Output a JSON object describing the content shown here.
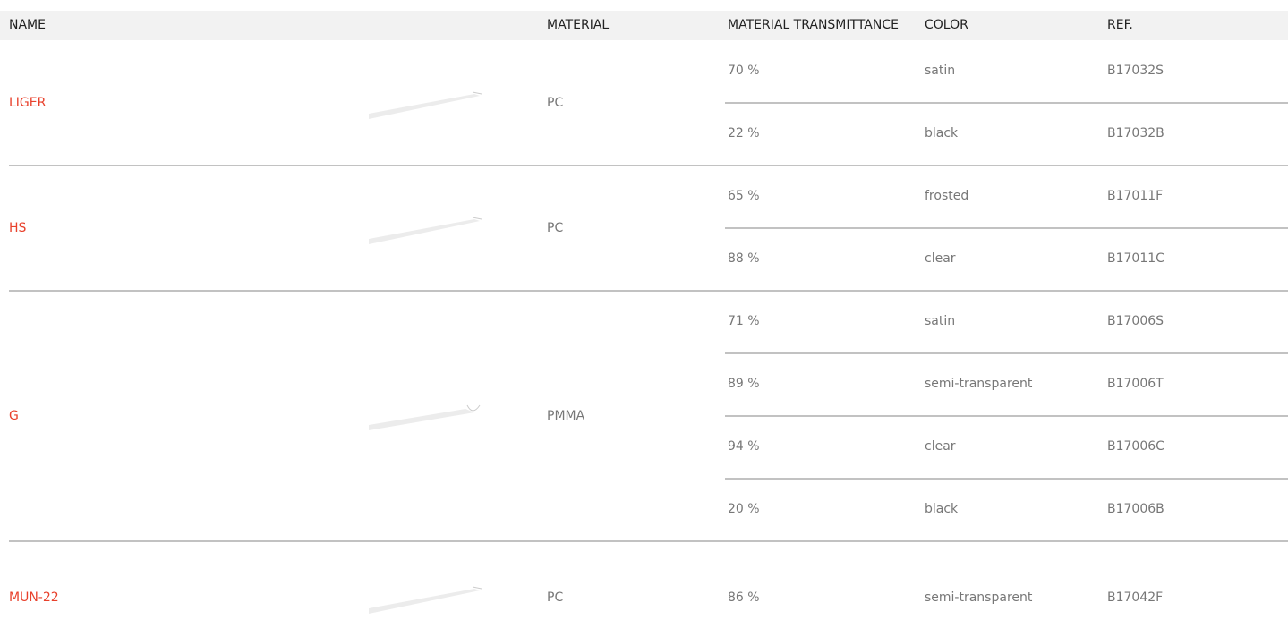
{
  "header": {
    "columns": [
      "NAME",
      "MATERIAL",
      "MATERIAL TRANSMITTANCE",
      "COLOR",
      "REF."
    ]
  },
  "table": {
    "rows": [
      {
        "name": "LIGER",
        "material": "PC",
        "variants": [
          {
            "transmittance": "70 %",
            "color": "satin",
            "ref": "B17032S"
          },
          {
            "transmittance": "22 %",
            "color": "black",
            "ref": "B17032B"
          }
        ]
      },
      {
        "name": "HS",
        "material": "PC",
        "variants": [
          {
            "transmittance": "65 %",
            "color": "frosted",
            "ref": "B17011F"
          },
          {
            "transmittance": "88 %",
            "color": "clear",
            "ref": "B17011C"
          }
        ]
      },
      {
        "name": "G",
        "material": "PMMA",
        "variants": [
          {
            "transmittance": "71 %",
            "color": "satin",
            "ref": "B17006S"
          },
          {
            "transmittance": "89 %",
            "color": "semi-transparent",
            "ref": "B17006T"
          },
          {
            "transmittance": "94 %",
            "color": "clear",
            "ref": "B17006C"
          },
          {
            "transmittance": "20 %",
            "color": "black",
            "ref": "B17006B"
          }
        ]
      },
      {
        "name": "MUN-22",
        "material": "PC",
        "variants": [
          {
            "transmittance": "86 %",
            "color": "semi-transparent",
            "ref": "B17042F"
          }
        ]
      }
    ]
  }
}
